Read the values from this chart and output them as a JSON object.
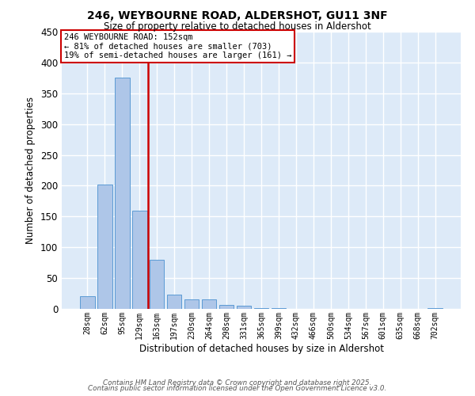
{
  "title": "246, WEYBOURNE ROAD, ALDERSHOT, GU11 3NF",
  "subtitle": "Size of property relative to detached houses in Aldershot",
  "xlabel": "Distribution of detached houses by size in Aldershot",
  "ylabel": "Number of detached properties",
  "bar_color": "#aec6e8",
  "bar_edge_color": "#5b9bd5",
  "background_color": "#ddeaf8",
  "grid_color": "#ffffff",
  "vline_color": "#cc0000",
  "categories": [
    "28sqm",
    "62sqm",
    "95sqm",
    "129sqm",
    "163sqm",
    "197sqm",
    "230sqm",
    "264sqm",
    "298sqm",
    "331sqm",
    "365sqm",
    "399sqm",
    "432sqm",
    "466sqm",
    "500sqm",
    "534sqm",
    "567sqm",
    "601sqm",
    "635sqm",
    "668sqm",
    "702sqm"
  ],
  "values": [
    20,
    202,
    375,
    160,
    80,
    23,
    15,
    15,
    6,
    5,
    1,
    1,
    0,
    0,
    0,
    0,
    0,
    0,
    0,
    0,
    1
  ],
  "ylim": [
    0,
    450
  ],
  "yticks": [
    0,
    50,
    100,
    150,
    200,
    250,
    300,
    350,
    400,
    450
  ],
  "annotation_title": "246 WEYBOURNE ROAD: 152sqm",
  "annotation_line1": "← 81% of detached houses are smaller (703)",
  "annotation_line2": "19% of semi-detached houses are larger (161) →",
  "footer1": "Contains HM Land Registry data © Crown copyright and database right 2025.",
  "footer2": "Contains public sector information licensed under the Open Government Licence v3.0.",
  "vline_x_index": 4
}
